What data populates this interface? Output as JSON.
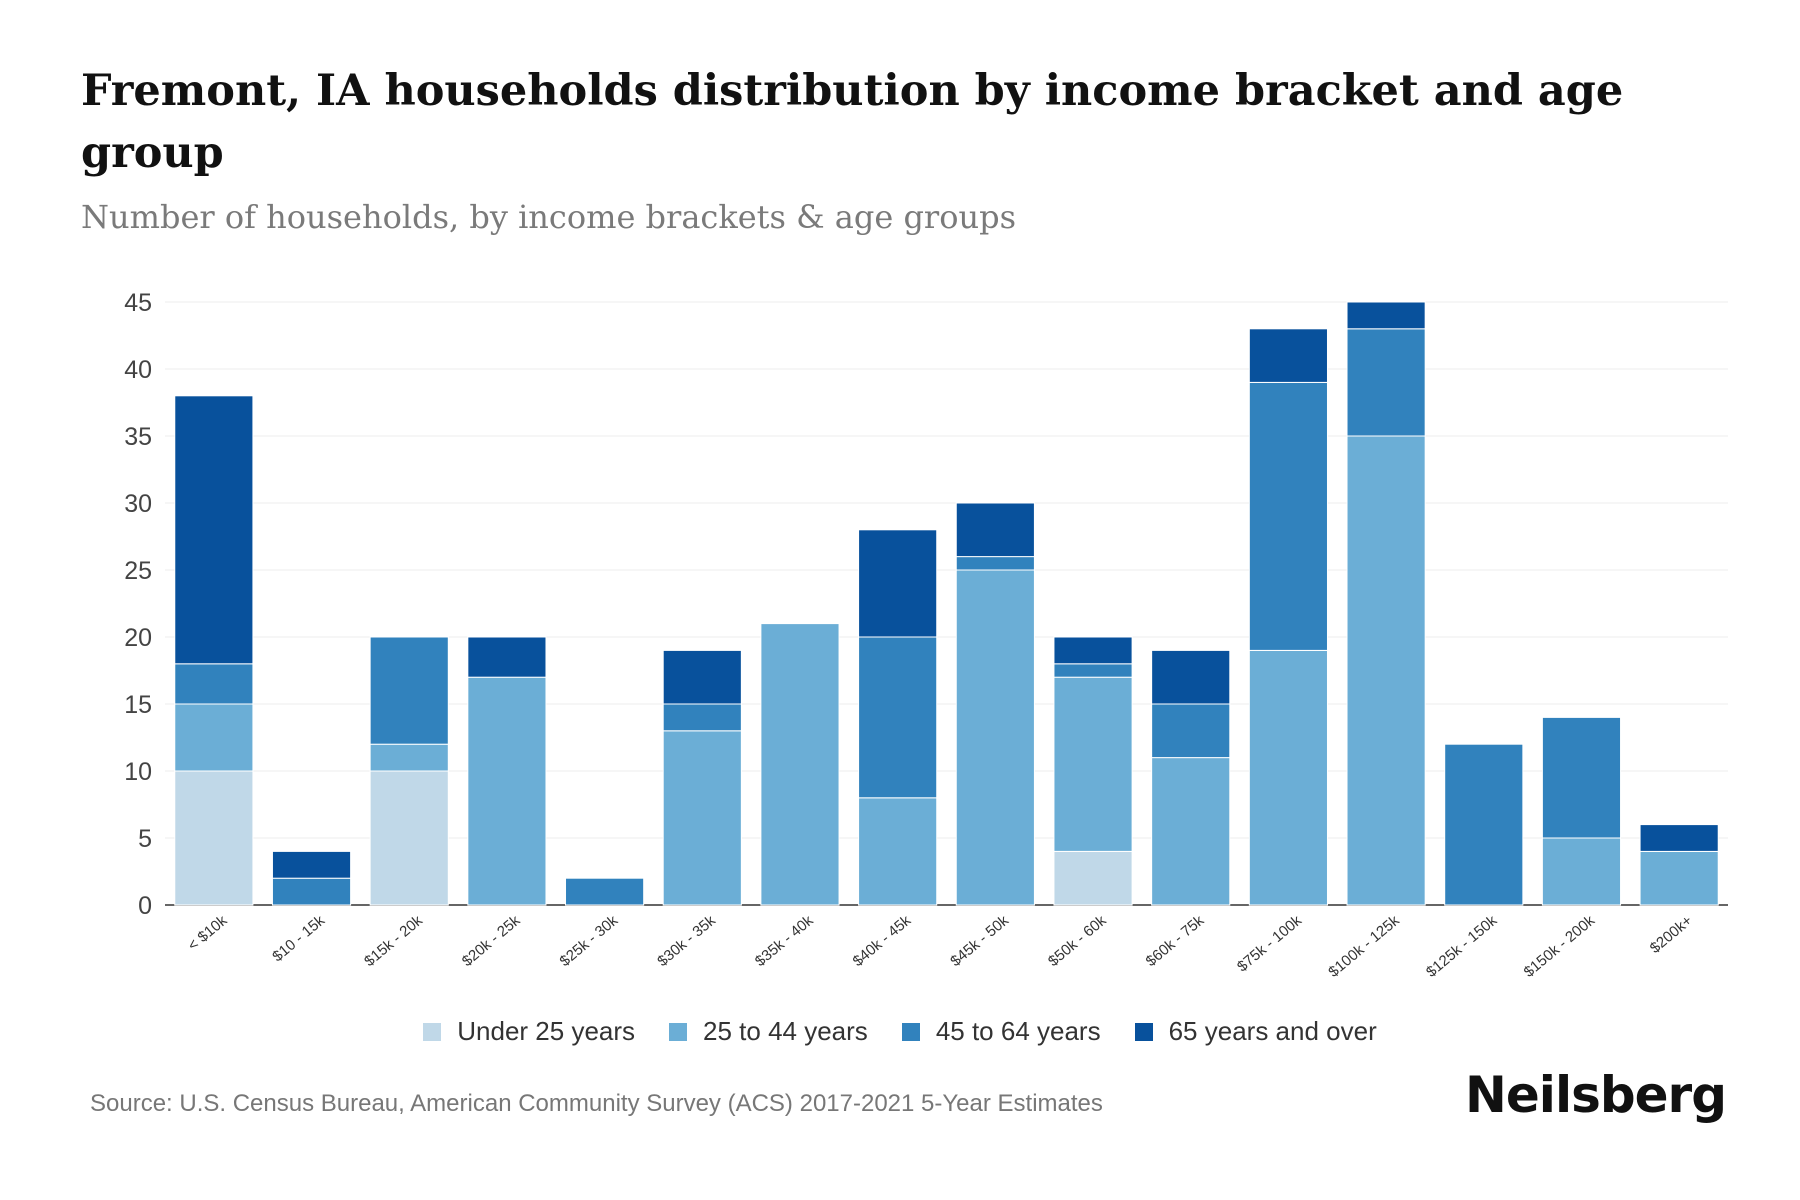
{
  "chart_data": {
    "type": "bar",
    "stacked": true,
    "title": "Fremont, IA households distribution by income bracket and age group",
    "subtitle": "Number of households, by income brackets & age groups",
    "xlabel": "",
    "ylabel": "",
    "ylim": [
      0,
      45
    ],
    "yticks": [
      0,
      5,
      10,
      15,
      20,
      25,
      30,
      35,
      40,
      45
    ],
    "grid": true,
    "legend_position": "bottom",
    "categories": [
      "< $10k",
      "$10 - 15k",
      "$15k - 20k",
      "$20k - 25k",
      "$25k - 30k",
      "$30k - 35k",
      "$35k - 40k",
      "$40k - 45k",
      "$45k - 50k",
      "$50k - 60k",
      "$60k - 75k",
      "$75k - 100k",
      "$100k - 125k",
      "$125k - 150k",
      "$150k - 200k",
      "$200k+"
    ],
    "series": [
      {
        "name": "Under 25 years",
        "color": "#c0d8e8",
        "values": [
          10,
          0,
          10,
          0,
          0,
          0,
          0,
          0,
          0,
          4,
          0,
          0,
          0,
          0,
          0,
          0
        ]
      },
      {
        "name": "25 to 44 years",
        "color": "#6baed6",
        "values": [
          5,
          0,
          2,
          17,
          0,
          13,
          21,
          8,
          25,
          13,
          11,
          19,
          35,
          0,
          5,
          4
        ]
      },
      {
        "name": "45 to 64 years",
        "color": "#3182bd",
        "values": [
          3,
          2,
          8,
          0,
          2,
          2,
          0,
          12,
          1,
          1,
          4,
          20,
          8,
          12,
          9,
          0
        ]
      },
      {
        "name": "65 years and over",
        "color": "#08519c",
        "values": [
          20,
          2,
          0,
          3,
          0,
          4,
          0,
          8,
          4,
          2,
          4,
          4,
          2,
          0,
          0,
          2
        ]
      }
    ]
  },
  "footer": {
    "source": "Source: U.S. Census Bureau, American Community Survey (ACS) 2017-2021 5-Year Estimates",
    "brand": "Neilsberg"
  }
}
